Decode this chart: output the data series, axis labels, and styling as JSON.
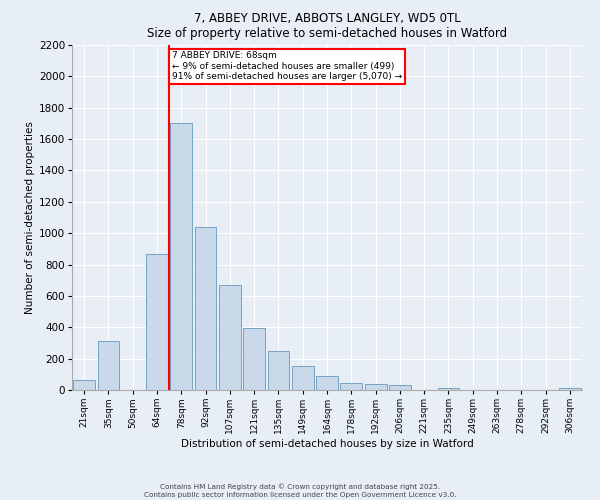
{
  "title1": "7, ABBEY DRIVE, ABBOTS LANGLEY, WD5 0TL",
  "title2": "Size of property relative to semi-detached houses in Watford",
  "xlabel": "Distribution of semi-detached houses by size in Watford",
  "ylabel": "Number of semi-detached properties",
  "bar_labels": [
    "21sqm",
    "35sqm",
    "50sqm",
    "64sqm",
    "78sqm",
    "92sqm",
    "107sqm",
    "121sqm",
    "135sqm",
    "149sqm",
    "164sqm",
    "178sqm",
    "192sqm",
    "206sqm",
    "221sqm",
    "235sqm",
    "249sqm",
    "263sqm",
    "278sqm",
    "292sqm",
    "306sqm"
  ],
  "bar_values": [
    65,
    310,
    0,
    870,
    1700,
    1040,
    670,
    395,
    250,
    150,
    90,
    45,
    40,
    35,
    0,
    10,
    0,
    0,
    0,
    0,
    15
  ],
  "bar_color": "#c9d9ea",
  "bar_edge_color": "#6699bb",
  "vline_color": "red",
  "annotation_title": "7 ABBEY DRIVE: 68sqm",
  "annotation_line1": "← 9% of semi-detached houses are smaller (499)",
  "annotation_line2": "91% of semi-detached houses are larger (5,070) →",
  "ylim": [
    0,
    2200
  ],
  "yticks": [
    0,
    200,
    400,
    600,
    800,
    1000,
    1200,
    1400,
    1600,
    1800,
    2000,
    2200
  ],
  "footer1": "Contains HM Land Registry data © Crown copyright and database right 2025.",
  "footer2": "Contains public sector information licensed under the Open Government Licence v3.0.",
  "bg_color": "#e8eef5",
  "plot_bg_color": "#e8eef5"
}
